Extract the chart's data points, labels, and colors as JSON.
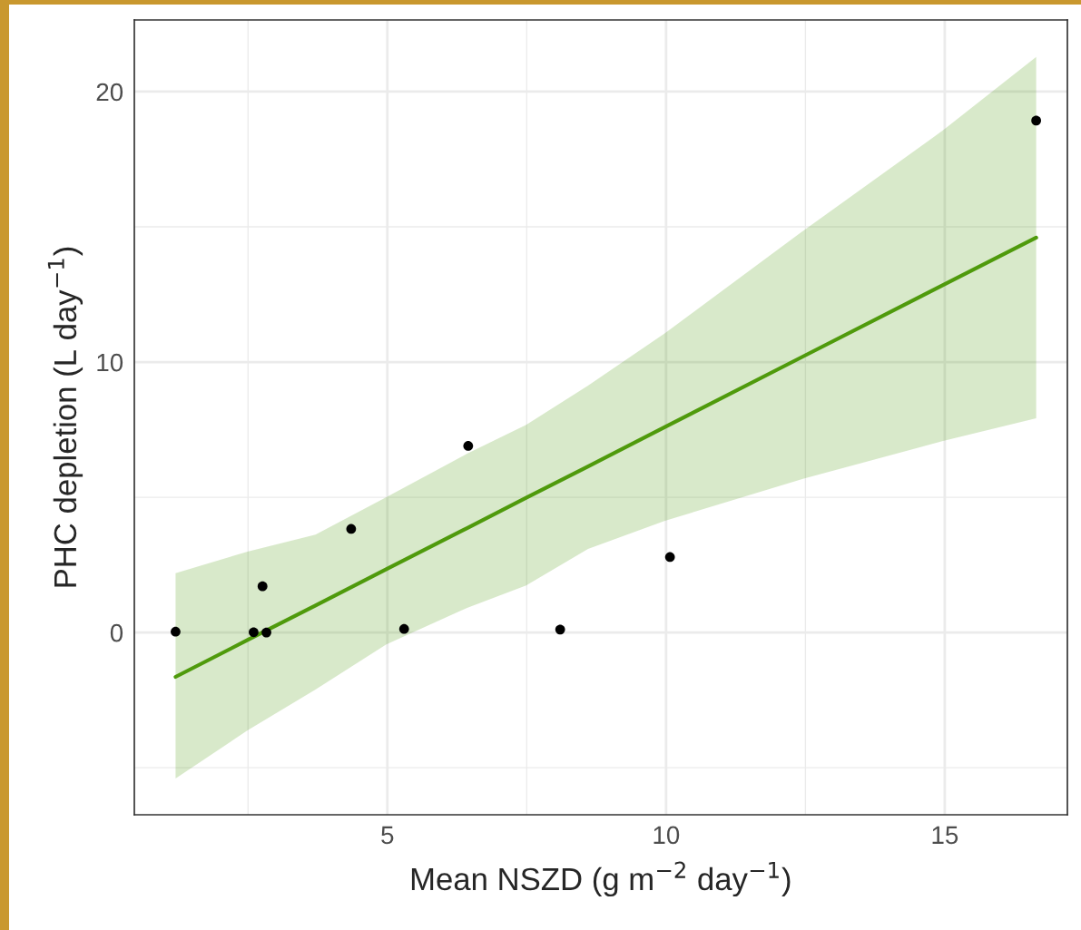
{
  "chart_data": {
    "type": "scatter",
    "xlabel": "Mean NSZD (g m$^{−2}$ day$^{−1}$)",
    "ylabel": "PHC depletion (L day$^{−1}$)",
    "series": [
      {
        "color": "#000000",
        "marker": "circle",
        "x": [
          1.2,
          2.6,
          2.76,
          2.83,
          4.35,
          5.3,
          6.45,
          8.1,
          10.07,
          16.64
        ],
        "values": [
          0.03,
          0.01,
          1.71,
          0.0,
          3.83,
          0.13,
          6.9,
          0.11,
          2.79,
          18.93
        ]
      },
      {
        "type": "line",
        "color": "#4f9a0c",
        "marker": "none",
        "x": [
          1.2,
          2.49,
          3.71,
          4.98,
          6.43,
          7.49,
          8.6,
          9.98,
          12.47,
          14.97,
          16.64
        ],
        "values": [
          -1.64,
          -0.28,
          1.0,
          2.34,
          3.86,
          4.98,
          6.14,
          7.6,
          10.22,
          12.85,
          14.6
        ],
        "lower": [
          -5.4,
          -3.62,
          -2.11,
          -0.44,
          0.91,
          1.74,
          3.09,
          4.13,
          5.69,
          7.08,
          7.92
        ],
        "upper": [
          2.19,
          2.99,
          3.62,
          5.0,
          6.61,
          7.68,
          9.13,
          11.07,
          14.87,
          18.57,
          21.28
        ]
      }
    ],
    "xlim": [
      0.46,
      17.2
    ],
    "ylim": [
      -6.74,
      22.65
    ],
    "xticks": [
      {
        "value": 2.5,
        "label": null
      },
      5,
      {
        "value": 7.5,
        "label": null
      },
      10,
      {
        "value": 12.5,
        "label": null
      },
      15
    ],
    "yticks": [
      {
        "value": -5,
        "label": null
      },
      0,
      {
        "value": 5,
        "label": null
      },
      10,
      {
        "value": 15,
        "label": null
      },
      20
    ],
    "grid": true,
    "line_style": "solid",
    "legend": false
  }
}
